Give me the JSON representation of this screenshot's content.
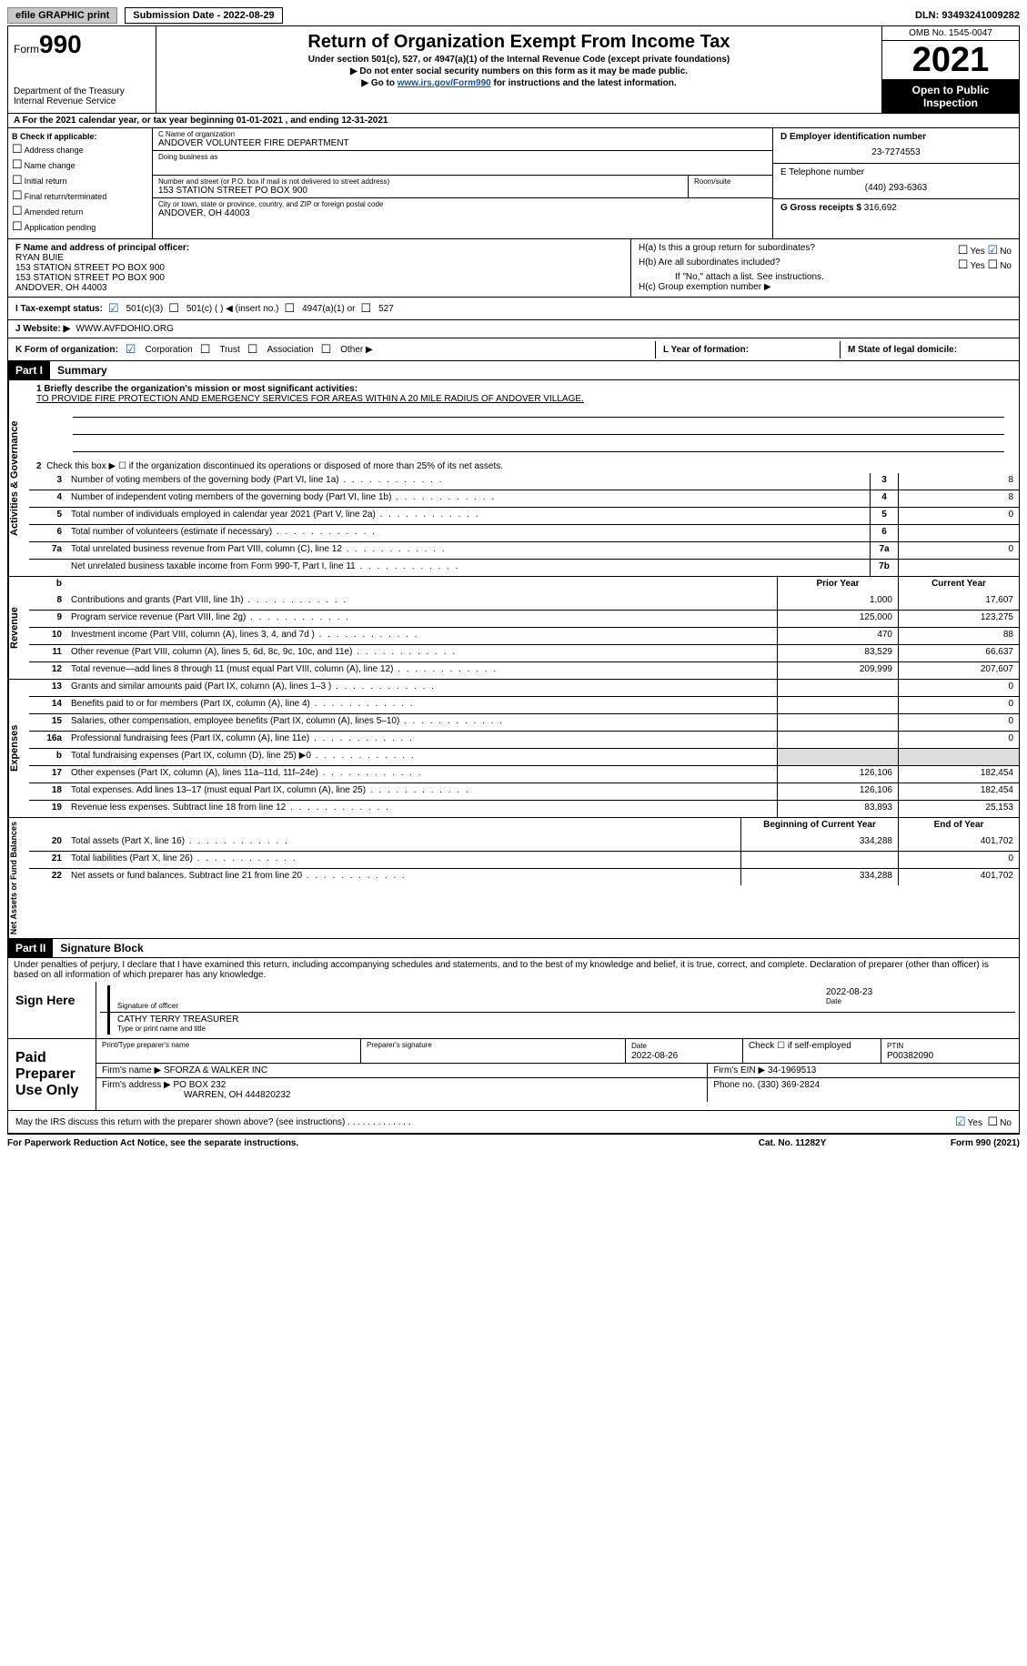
{
  "topbar": {
    "efile_btn": "efile GRAPHIC print",
    "sub_date_label": "Submission Date - 2022-08-29",
    "dln": "DLN: 93493241009282"
  },
  "header": {
    "form_label": "Form",
    "form_number": "990",
    "dept": "Department of the Treasury\nInternal Revenue Service",
    "title": "Return of Organization Exempt From Income Tax",
    "subtitle": "Under section 501(c), 527, or 4947(a)(1) of the Internal Revenue Code (except private foundations)",
    "note1": "▶ Do not enter social security numbers on this form as it may be made public.",
    "note2_pre": "▶ Go to ",
    "note2_link": "www.irs.gov/Form990",
    "note2_post": " for instructions and the latest information.",
    "omb": "OMB No. 1545-0047",
    "year": "2021",
    "open": "Open to Public Inspection"
  },
  "rowA": "A  For the 2021 calendar year, or tax year beginning 01-01-2021    , and ending 12-31-2021",
  "colB": {
    "label": "B Check if applicable:",
    "items": [
      "Address change",
      "Name change",
      "Initial return",
      "Final return/terminated",
      "Amended return",
      "Application pending"
    ]
  },
  "colC": {
    "name_label": "C Name of organization",
    "name": "ANDOVER VOLUNTEER FIRE DEPARTMENT",
    "dba_label": "Doing business as",
    "addr_label": "Number and street (or P.O. box if mail is not delivered to street address)",
    "addr": "153 STATION STREET PO BOX 900",
    "room_label": "Room/suite",
    "city_label": "City or town, state or province, country, and ZIP or foreign postal code",
    "city": "ANDOVER, OH  44003"
  },
  "colD": {
    "ein_label": "D Employer identification number",
    "ein": "23-7274553",
    "phone_label": "E Telephone number",
    "phone": "(440) 293-6363",
    "gross_label": "G Gross receipts $",
    "gross": "316,692"
  },
  "colF": {
    "label": "F  Name and address of principal officer:",
    "name": "RYAN BUIE",
    "addr1": "153 STATION STREET PO BOX 900",
    "addr2": "153 STATION STREET PO BOX 900",
    "city": "ANDOVER, OH  44003"
  },
  "colH": {
    "ha": "H(a)  Is this a group return for subordinates?",
    "hb": "H(b)  Are all subordinates included?",
    "hb_note": "If \"No,\" attach a list. See instructions.",
    "hc": "H(c)  Group exemption number ▶"
  },
  "rowI": {
    "label": "I  Tax-exempt status:",
    "opts": [
      "501(c)(3)",
      "501(c) (  ) ◀ (insert no.)",
      "4947(a)(1) or",
      "527"
    ]
  },
  "rowJ": {
    "label": "J  Website: ▶",
    "val": "WWW.AVFDOHIO.ORG"
  },
  "rowK": {
    "label": "K Form of organization:",
    "opts": [
      "Corporation",
      "Trust",
      "Association",
      "Other ▶"
    ]
  },
  "rowL": {
    "label": "L Year of formation:"
  },
  "rowM": {
    "label": "M State of legal domicile:"
  },
  "partI": {
    "tag": "Part I",
    "title": "Summary"
  },
  "summary": {
    "l1_label": "1  Briefly describe the organization's mission or most significant activities:",
    "l1_text": "TO PROVIDE FIRE PROTECTION AND EMERGENCY SERVICES FOR AREAS WITHIN A 20 MILE RADIUS OF ANDOVER VILLAGE.",
    "l2": "Check this box ▶ ☐  if the organization discontinued its operations or disposed of more than 25% of its net assets.",
    "governance_label": "Activities & Governance",
    "lines_gov": [
      {
        "n": "3",
        "d": "Number of voting members of the governing body (Part VI, line 1a)",
        "box": "3",
        "v": "8"
      },
      {
        "n": "4",
        "d": "Number of independent voting members of the governing body (Part VI, line 1b)",
        "box": "4",
        "v": "8"
      },
      {
        "n": "5",
        "d": "Total number of individuals employed in calendar year 2021 (Part V, line 2a)",
        "box": "5",
        "v": "0"
      },
      {
        "n": "6",
        "d": "Total number of volunteers (estimate if necessary)",
        "box": "6",
        "v": ""
      },
      {
        "n": "7a",
        "d": "Total unrelated business revenue from Part VIII, column (C), line 12",
        "box": "7a",
        "v": "0"
      },
      {
        "n": "",
        "d": "Net unrelated business taxable income from Form 990-T, Part I, line 11",
        "box": "7b",
        "v": ""
      }
    ],
    "revenue_label": "Revenue",
    "hdr_prior": "Prior Year",
    "hdr_cur": "Current Year",
    "lines_rev": [
      {
        "n": "8",
        "d": "Contributions and grants (Part VIII, line 1h)",
        "p": "1,000",
        "c": "17,607"
      },
      {
        "n": "9",
        "d": "Program service revenue (Part VIII, line 2g)",
        "p": "125,000",
        "c": "123,275"
      },
      {
        "n": "10",
        "d": "Investment income (Part VIII, column (A), lines 3, 4, and 7d )",
        "p": "470",
        "c": "88"
      },
      {
        "n": "11",
        "d": "Other revenue (Part VIII, column (A), lines 5, 6d, 8c, 9c, 10c, and 11e)",
        "p": "83,529",
        "c": "66,637"
      },
      {
        "n": "12",
        "d": "Total revenue—add lines 8 through 11 (must equal Part VIII, column (A), line 12)",
        "p": "209,999",
        "c": "207,607"
      }
    ],
    "expenses_label": "Expenses",
    "lines_exp": [
      {
        "n": "13",
        "d": "Grants and similar amounts paid (Part IX, column (A), lines 1–3 )",
        "p": "",
        "c": "0"
      },
      {
        "n": "14",
        "d": "Benefits paid to or for members (Part IX, column (A), line 4)",
        "p": "",
        "c": "0"
      },
      {
        "n": "15",
        "d": "Salaries, other compensation, employee benefits (Part IX, column (A), lines 5–10)",
        "p": "",
        "c": "0"
      },
      {
        "n": "16a",
        "d": "Professional fundraising fees (Part IX, column (A), line 11e)",
        "p": "",
        "c": "0"
      },
      {
        "n": "b",
        "d": "Total fundraising expenses (Part IX, column (D), line 25) ▶0",
        "p": "shade",
        "c": "shade"
      },
      {
        "n": "17",
        "d": "Other expenses (Part IX, column (A), lines 11a–11d, 11f–24e)",
        "p": "126,106",
        "c": "182,454"
      },
      {
        "n": "18",
        "d": "Total expenses. Add lines 13–17 (must equal Part IX, column (A), line 25)",
        "p": "126,106",
        "c": "182,454"
      },
      {
        "n": "19",
        "d": "Revenue less expenses. Subtract line 18 from line 12",
        "p": "83,893",
        "c": "25,153"
      }
    ],
    "net_label": "Net Assets or Fund Balances",
    "hdr_beg": "Beginning of Current Year",
    "hdr_end": "End of Year",
    "lines_net": [
      {
        "n": "20",
        "d": "Total assets (Part X, line 16)",
        "p": "334,288",
        "c": "401,702"
      },
      {
        "n": "21",
        "d": "Total liabilities (Part X, line 26)",
        "p": "",
        "c": "0"
      },
      {
        "n": "22",
        "d": "Net assets or fund balances. Subtract line 21 from line 20",
        "p": "334,288",
        "c": "401,702"
      }
    ]
  },
  "partII": {
    "tag": "Part II",
    "title": "Signature Block"
  },
  "sig": {
    "declaration": "Under penalties of perjury, I declare that I have examined this return, including accompanying schedules and statements, and to the best of my knowledge and belief, it is true, correct, and complete. Declaration of preparer (other than officer) is based on all information of which preparer has any knowledge.",
    "sign_here": "Sign Here",
    "sig_officer": "Signature of officer",
    "sig_date": "2022-08-23",
    "date_label": "Date",
    "name_title": "CATHY TERRY TREASURER",
    "type_label": "Type or print name and title",
    "paid_label": "Paid Preparer Use Only",
    "prep_name_label": "Print/Type preparer's name",
    "prep_sig_label": "Preparer's signature",
    "prep_date_label": "Date",
    "prep_date": "2022-08-26",
    "check_if": "Check ☐ if self-employed",
    "ptin_label": "PTIN",
    "ptin": "P00382090",
    "firm_name_label": "Firm's name    ▶",
    "firm_name": "SFORZA & WALKER INC",
    "firm_ein_label": "Firm's EIN ▶",
    "firm_ein": "34-1969513",
    "firm_addr_label": "Firm's address ▶",
    "firm_addr": "PO BOX 232",
    "firm_city": "WARREN, OH  444820232",
    "phone_label": "Phone no.",
    "phone": "(330) 369-2824",
    "may_irs": "May the IRS discuss this return with the preparer shown above? (see instructions)"
  },
  "footer": {
    "paperwork": "For Paperwork Reduction Act Notice, see the separate instructions.",
    "cat": "Cat. No. 11282Y",
    "form": "Form 990 (2021)"
  }
}
